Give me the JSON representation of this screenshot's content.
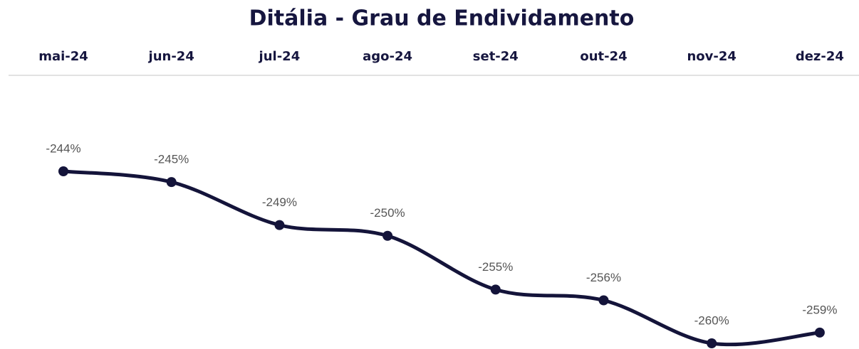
{
  "chart_data": {
    "type": "line",
    "title": "Ditália - Grau de Endividamento",
    "categories": [
      "mai-24",
      "jun-24",
      "jul-24",
      "ago-24",
      "set-24",
      "out-24",
      "nov-24",
      "dez-24"
    ],
    "series": [
      {
        "color": "#14143a",
        "values": [
          -244,
          -245,
          -249,
          -250,
          -255,
          -256,
          -260,
          -259
        ],
        "value_labels": [
          "-244%",
          "-245%",
          "-249%",
          "-250%",
          "-255%",
          "-256%",
          "-260%",
          "-259%"
        ]
      }
    ]
  }
}
